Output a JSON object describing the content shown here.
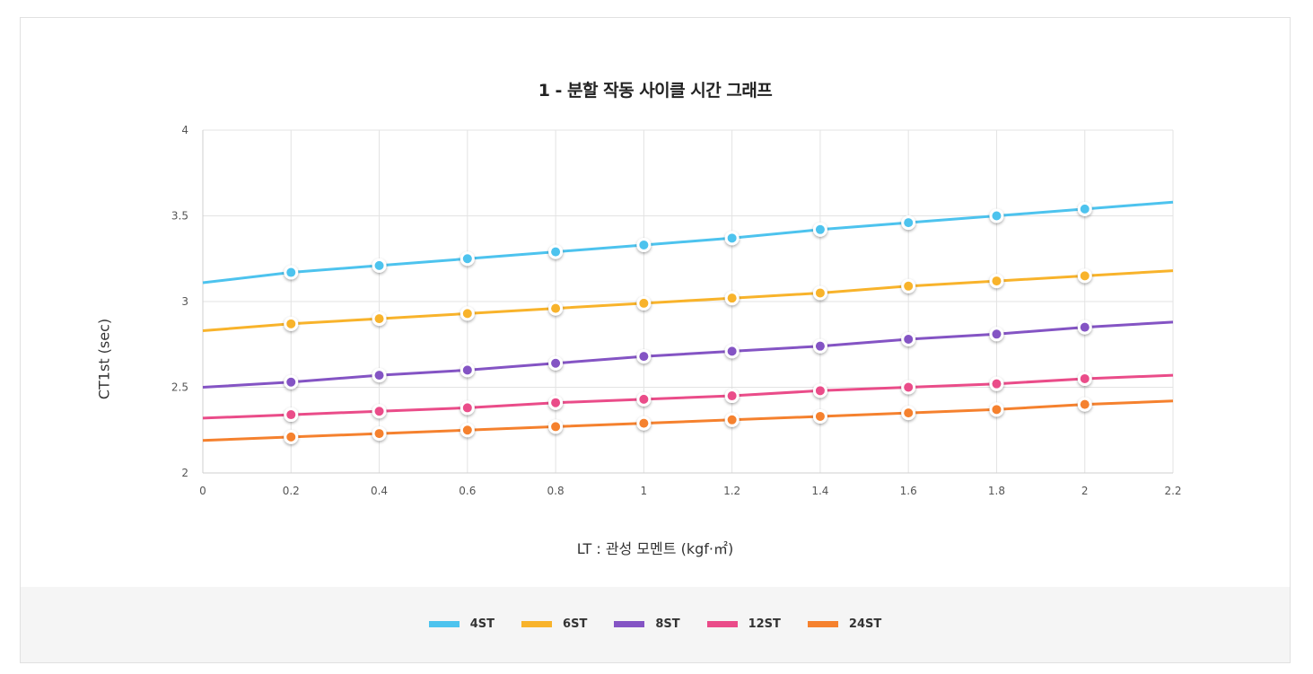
{
  "chart_data": {
    "type": "line",
    "title": "1 - 분할 작동 사이클 시간 그래프",
    "xlabel": "LT : 관성 모멘트 (kgf·㎡)",
    "ylabel": "CT1st (sec)",
    "xlim": [
      0,
      2.2
    ],
    "ylim": [
      2,
      4
    ],
    "x_ticks": [
      "0",
      "0.2",
      "0.4",
      "0.6",
      "0.8",
      "1",
      "1.2",
      "1.4",
      "1.6",
      "1.8",
      "2",
      "2.2"
    ],
    "y_ticks": [
      "2",
      "2.5",
      "3",
      "3.5",
      "4"
    ],
    "grid": true,
    "legend_position": "bottom",
    "x": [
      0.2,
      0.4,
      0.6,
      0.8,
      1.0,
      1.2,
      1.4,
      1.6,
      1.8,
      2.0
    ],
    "series": [
      {
        "name": "4ST",
        "color": "#4dc3ee",
        "line_start": 3.11,
        "line_end": 3.58,
        "values": [
          3.17,
          3.21,
          3.25,
          3.29,
          3.33,
          3.37,
          3.42,
          3.46,
          3.5,
          3.54
        ]
      },
      {
        "name": "6ST",
        "color": "#f8b32b",
        "line_start": 2.83,
        "line_end": 3.18,
        "values": [
          2.87,
          2.9,
          2.93,
          2.96,
          2.99,
          3.02,
          3.05,
          3.09,
          3.12,
          3.15
        ]
      },
      {
        "name": "8ST",
        "color": "#8454c4",
        "line_start": 2.5,
        "line_end": 2.88,
        "values": [
          2.53,
          2.57,
          2.6,
          2.64,
          2.68,
          2.71,
          2.74,
          2.78,
          2.81,
          2.85
        ]
      },
      {
        "name": "12ST",
        "color": "#ea4c89",
        "line_start": 2.32,
        "line_end": 2.57,
        "values": [
          2.34,
          2.36,
          2.38,
          2.41,
          2.43,
          2.45,
          2.48,
          2.5,
          2.52,
          2.55
        ]
      },
      {
        "name": "24ST",
        "color": "#f5812e",
        "line_start": 2.19,
        "line_end": 2.42,
        "values": [
          2.21,
          2.23,
          2.25,
          2.27,
          2.29,
          2.31,
          2.33,
          2.35,
          2.37,
          2.4
        ]
      }
    ]
  }
}
